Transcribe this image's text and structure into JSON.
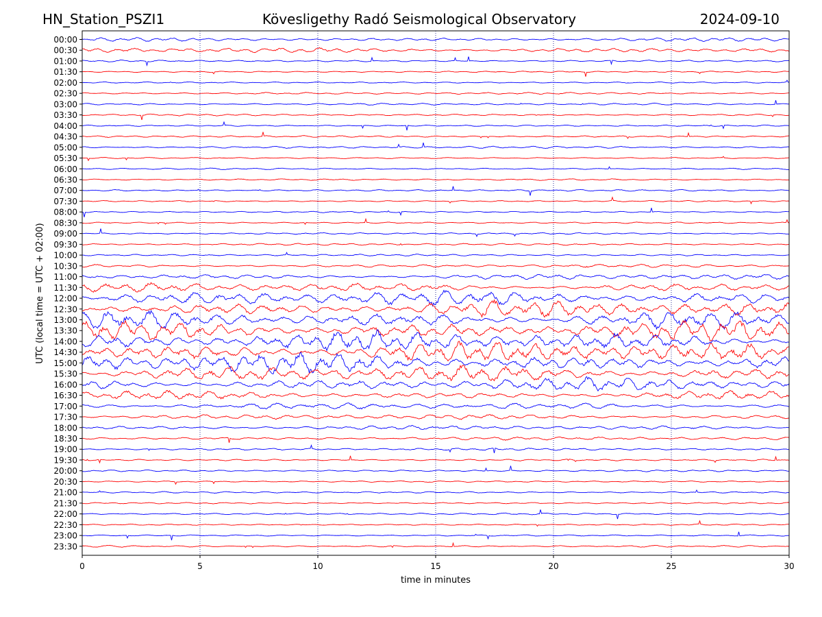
{
  "header": {
    "station": "HN_Station_PSZI1",
    "title": "Kövesligethy Radó Seismological Observatory",
    "date": "2024-09-10"
  },
  "colors": {
    "trace_a": "#0000ff",
    "trace_b": "#ff0000",
    "grid": "#000080",
    "axis": "#000000"
  },
  "chart_data": {
    "type": "line",
    "title": "Kövesligethy Radó Seismological Observatory",
    "xlabel": "time in minutes",
    "ylabel": "UTC (local time = UTC + 02:00)",
    "xlim": [
      0,
      30
    ],
    "x_ticks": [
      "0",
      "5",
      "10",
      "15",
      "20",
      "25",
      "30"
    ],
    "vertical_grid": true,
    "row_labels": [
      "00:00",
      "00:30",
      "01:00",
      "01:30",
      "02:00",
      "02:30",
      "03:00",
      "03:30",
      "04:00",
      "04:30",
      "05:00",
      "05:30",
      "06:00",
      "06:30",
      "07:00",
      "07:30",
      "08:00",
      "08:30",
      "09:00",
      "09:30",
      "10:00",
      "10:30",
      "11:00",
      "11:30",
      "12:00",
      "12:30",
      "13:00",
      "13:30",
      "14:00",
      "14:30",
      "15:00",
      "15:30",
      "16:00",
      "16:30",
      "17:00",
      "17:30",
      "18:00",
      "18:30",
      "19:00",
      "19:30",
      "20:00",
      "20:30",
      "21:00",
      "21:30",
      "22:00",
      "22:30",
      "23:00",
      "23:30"
    ],
    "row_colors": [
      "blue",
      "red"
    ],
    "activity": [
      0.3,
      0.45,
      0.1,
      0.05,
      0.05,
      0.12,
      0.12,
      0.1,
      0.06,
      0.1,
      0.15,
      0.05,
      0.08,
      0.08,
      0.1,
      0.05,
      0.05,
      0.06,
      0.08,
      0.12,
      0.1,
      0.25,
      0.5,
      0.9,
      1.5,
      1.6,
      1.8,
      2.0,
      2.0,
      2.0,
      2.0,
      1.6,
      1.3,
      0.8,
      0.6,
      0.45,
      0.35,
      0.25,
      0.15,
      0.1,
      0.1,
      0.06,
      0.08,
      0.06,
      0.1,
      0.05,
      0.06,
      0.1
    ]
  }
}
